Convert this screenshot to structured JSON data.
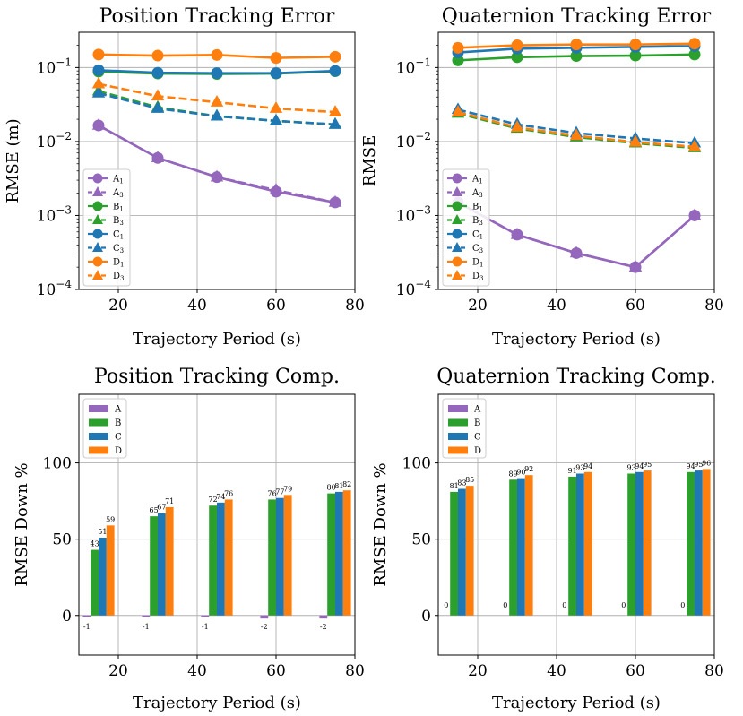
{
  "colors": {
    "A": "#9467bd",
    "B": "#2ca02c",
    "C": "#1f77b4",
    "D": "#ff7f0e"
  },
  "chart_data": [
    {
      "id": "pos-err",
      "type": "line",
      "title": "Position Tracking Error",
      "xlabel": "Trajectory Period (s)",
      "ylabel": "RMSE (m)",
      "yscale": "log",
      "xlim": [
        10,
        80
      ],
      "ylim": [
        0.0001,
        0.3
      ],
      "xticks": [
        20,
        40,
        60,
        80
      ],
      "yticks": [
        {
          "value": 0.0001,
          "base": "10",
          "exp": "−4"
        },
        {
          "value": 0.001,
          "base": "10",
          "exp": "−3"
        },
        {
          "value": 0.01,
          "base": "10",
          "exp": "−2"
        },
        {
          "value": 0.1,
          "base": "10",
          "exp": "−1"
        }
      ],
      "x": [
        15,
        30,
        45,
        60,
        75
      ],
      "series": [
        {
          "name": "A",
          "sub": "1",
          "color": "A",
          "dashed": false,
          "marker": "circle",
          "values": [
            0.0165,
            0.006,
            0.0033,
            0.0021,
            0.0015
          ]
        },
        {
          "name": "A",
          "sub": "3",
          "color": "A",
          "dashed": true,
          "marker": "triangle",
          "values": [
            0.0165,
            0.006,
            0.0033,
            0.0022,
            0.0015
          ]
        },
        {
          "name": "B",
          "sub": "1",
          "color": "B",
          "dashed": false,
          "marker": "circle",
          "values": [
            0.088,
            0.083,
            0.082,
            0.083,
            0.089
          ]
        },
        {
          "name": "B",
          "sub": "3",
          "color": "B",
          "dashed": true,
          "marker": "triangle",
          "values": [
            0.048,
            0.029,
            0.022,
            0.019,
            0.017
          ]
        },
        {
          "name": "C",
          "sub": "1",
          "color": "C",
          "dashed": false,
          "marker": "circle",
          "values": [
            0.092,
            0.085,
            0.084,
            0.084,
            0.09
          ]
        },
        {
          "name": "C",
          "sub": "3",
          "color": "C",
          "dashed": true,
          "marker": "triangle",
          "values": [
            0.045,
            0.028,
            0.022,
            0.019,
            0.017
          ]
        },
        {
          "name": "D",
          "sub": "1",
          "color": "D",
          "dashed": false,
          "marker": "circle",
          "values": [
            0.15,
            0.145,
            0.148,
            0.135,
            0.14
          ]
        },
        {
          "name": "D",
          "sub": "3",
          "color": "D",
          "dashed": true,
          "marker": "triangle",
          "values": [
            0.06,
            0.041,
            0.034,
            0.028,
            0.025
          ]
        }
      ]
    },
    {
      "id": "quat-err",
      "type": "line",
      "title": "Quaternion Tracking Error",
      "xlabel": "Trajectory Period (s)",
      "ylabel": "RMSE",
      "yscale": "log",
      "xlim": [
        10,
        80
      ],
      "ylim": [
        0.0001,
        0.3
      ],
      "xticks": [
        20,
        40,
        60,
        80
      ],
      "yticks": [
        {
          "value": 0.0001,
          "base": "10",
          "exp": "−4"
        },
        {
          "value": 0.001,
          "base": "10",
          "exp": "−3"
        },
        {
          "value": 0.01,
          "base": "10",
          "exp": "−2"
        },
        {
          "value": 0.1,
          "base": "10",
          "exp": "−1"
        }
      ],
      "x": [
        15,
        30,
        45,
        60,
        75
      ],
      "series": [
        {
          "name": "A",
          "sub": "1",
          "color": "A",
          "dashed": false,
          "marker": "circle",
          "values": [
            0.0015,
            0.00055,
            0.00031,
            0.0002,
            0.001
          ]
        },
        {
          "name": "A",
          "sub": "3",
          "color": "A",
          "dashed": true,
          "marker": "triangle",
          "values": [
            0.0015,
            0.00055,
            0.00031,
            0.0002,
            0.001
          ]
        },
        {
          "name": "B",
          "sub": "1",
          "color": "B",
          "dashed": false,
          "marker": "circle",
          "values": [
            0.125,
            0.138,
            0.143,
            0.145,
            0.15
          ]
        },
        {
          "name": "B",
          "sub": "3",
          "color": "B",
          "dashed": true,
          "marker": "triangle",
          "values": [
            0.024,
            0.015,
            0.0115,
            0.0095,
            0.0082
          ]
        },
        {
          "name": "C",
          "sub": "1",
          "color": "C",
          "dashed": false,
          "marker": "circle",
          "values": [
            0.16,
            0.18,
            0.185,
            0.19,
            0.195
          ]
        },
        {
          "name": "C",
          "sub": "3",
          "color": "C",
          "dashed": true,
          "marker": "triangle",
          "values": [
            0.027,
            0.017,
            0.013,
            0.011,
            0.0095
          ]
        },
        {
          "name": "D",
          "sub": "1",
          "color": "D",
          "dashed": false,
          "marker": "circle",
          "values": [
            0.185,
            0.2,
            0.205,
            0.205,
            0.21
          ]
        },
        {
          "name": "D",
          "sub": "3",
          "color": "D",
          "dashed": true,
          "marker": "triangle",
          "values": [
            0.025,
            0.0155,
            0.012,
            0.0098,
            0.0085
          ]
        }
      ]
    },
    {
      "id": "pos-comp",
      "type": "bar",
      "title": "Position Tracking Comp.",
      "xlabel": "Trajectory Period (s)",
      "ylabel": "RMSE Down %",
      "xlim": [
        10,
        80
      ],
      "ylim": [
        -26,
        145
      ],
      "xticks": [
        20,
        40,
        60,
        80
      ],
      "yticks": [
        0,
        50,
        100
      ],
      "x": [
        15,
        30,
        45,
        60,
        75
      ],
      "series": [
        {
          "name": "A",
          "color": "A",
          "values": [
            -1,
            -1,
            -1,
            -2,
            -2
          ]
        },
        {
          "name": "B",
          "color": "B",
          "values": [
            43,
            65,
            72,
            76,
            80
          ]
        },
        {
          "name": "C",
          "color": "C",
          "values": [
            51,
            67,
            74,
            77,
            81
          ]
        },
        {
          "name": "D",
          "color": "D",
          "values": [
            59,
            71,
            76,
            79,
            82
          ]
        }
      ]
    },
    {
      "id": "quat-comp",
      "type": "bar",
      "title": "Quaternion Tracking Comp.",
      "xlabel": "Trajectory Period (s)",
      "ylabel": "RMSE Down %",
      "xlim": [
        10,
        80
      ],
      "ylim": [
        -26,
        145
      ],
      "xticks": [
        20,
        40,
        60,
        80
      ],
      "yticks": [
        0,
        50,
        100
      ],
      "x": [
        15,
        30,
        45,
        60,
        75
      ],
      "series": [
        {
          "name": "A",
          "color": "A",
          "values": [
            0,
            0,
            0,
            0,
            0
          ]
        },
        {
          "name": "B",
          "color": "B",
          "values": [
            81,
            89,
            91,
            93,
            94
          ]
        },
        {
          "name": "C",
          "color": "C",
          "values": [
            83,
            90,
            93,
            94,
            95
          ]
        },
        {
          "name": "D",
          "color": "D",
          "values": [
            85,
            92,
            94,
            95,
            96
          ]
        }
      ]
    }
  ]
}
